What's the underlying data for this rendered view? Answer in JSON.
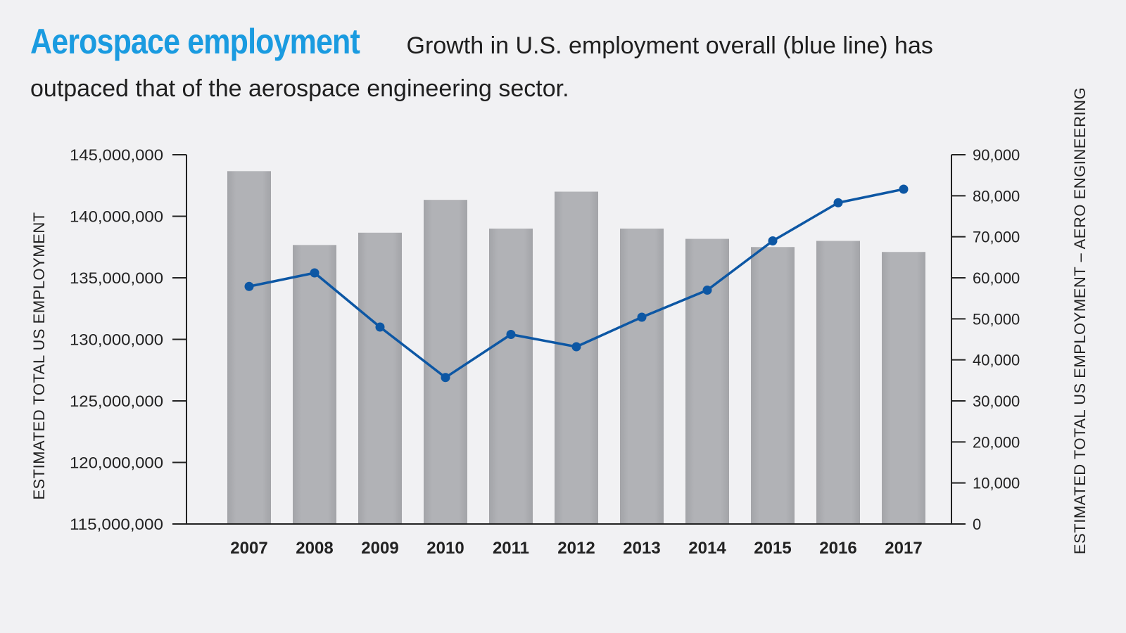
{
  "header": {
    "title": "Aerospace employment",
    "subtitle": "Growth in U.S. employment overall (blue line) has outpaced that of the aerospace engineering sector."
  },
  "colors": {
    "title": "#1a9be0",
    "bar": "#b1b2b6",
    "line": "#0d57a4",
    "axis": "#222222",
    "background": "#f1f1f3"
  },
  "chart_data": {
    "type": "bar",
    "categories": [
      "2007",
      "2008",
      "2009",
      "2010",
      "2011",
      "2012",
      "2013",
      "2014",
      "2015",
      "2016",
      "2017"
    ],
    "series": [
      {
        "type": "bar",
        "axis": "right",
        "values": [
          86000,
          68000,
          71000,
          79000,
          72000,
          81000,
          72000,
          69500,
          67500,
          69000,
          66300
        ]
      },
      {
        "type": "line",
        "axis": "left",
        "values": [
          134300000,
          135400000,
          131000000,
          126900000,
          130400000,
          129400000,
          131800000,
          134000000,
          138000000,
          141100000,
          142200000
        ]
      }
    ],
    "left_axis": {
      "label": "ESTIMATED TOTAL US EMPLOYMENT",
      "ylim": [
        115000000,
        145000000
      ],
      "ticks": [
        "145,000,000",
        "140,000,000",
        "135,000,000",
        "130,000,000",
        "125,000,000",
        "120,000,000",
        "115,000,000"
      ]
    },
    "right_axis": {
      "label": "ESTIMATED TOTAL US EMPLOYMENT – AERO ENGINEERING",
      "ylim": [
        0,
        90000
      ],
      "ticks": [
        "90,000",
        "80,000",
        "70,000",
        "60,000",
        "50,000",
        "40,000",
        "30,000",
        "20,000",
        "10,000",
        "0"
      ]
    },
    "grid": false,
    "legend": "none"
  }
}
